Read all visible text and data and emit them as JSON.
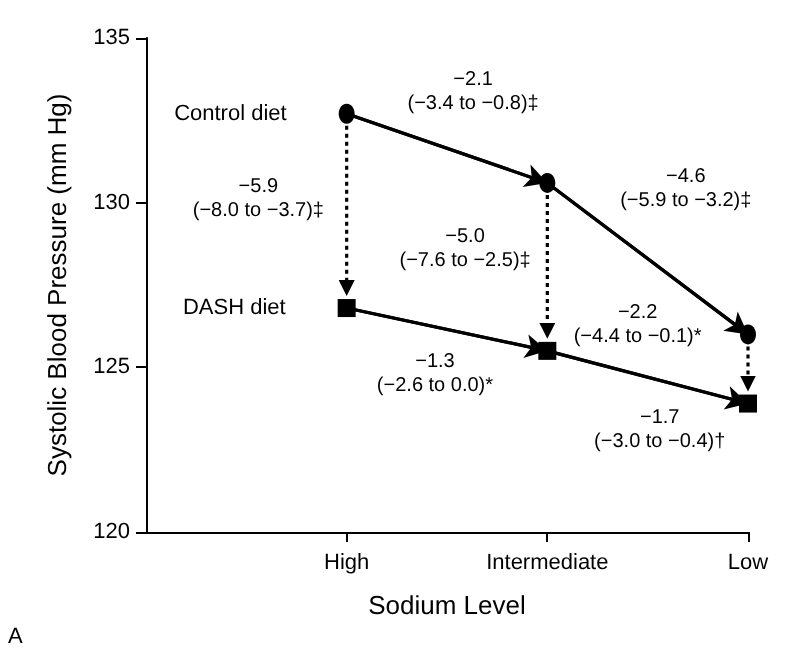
{
  "chart_data": {
    "type": "line",
    "xlabel": "Sodium Level",
    "ylabel": "Systolic Blood Pressure (mm Hg)",
    "categories": [
      "High",
      "Intermediate",
      "Low"
    ],
    "series": [
      {
        "name": "Control diet",
        "color": "#000000",
        "marker": "circle",
        "values": [
          132.7,
          130.6,
          126.0
        ]
      },
      {
        "name": "DASH diet",
        "color": "#000000",
        "marker": "square",
        "values": [
          126.8,
          125.5,
          123.9
        ]
      }
    ],
    "ylim": [
      120,
      135
    ],
    "yticks": [
      120,
      125,
      130,
      135
    ],
    "grid": false,
    "legend": false,
    "line_style": "solid",
    "annotations": [
      "−2.1\n(−3.4 to −0.8)‡",
      "−5.9\n(−8.0 to −3.7)‡",
      "−5.0\n(−7.6 to −2.5)‡",
      "−4.6\n(−5.9 to −3.2)‡",
      "−2.2\n(−4.4 to −0.1)*",
      "−1.3\n(−2.6 to 0.0)*",
      "−1.7\n(−3.0 to −0.4)†",
      "A"
    ]
  }
}
